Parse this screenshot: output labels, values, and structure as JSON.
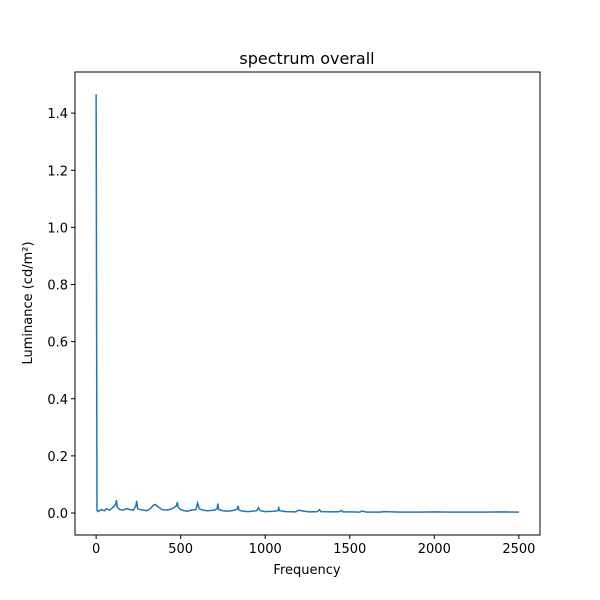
{
  "chart_data": {
    "type": "line",
    "title": "spectrum overall",
    "xlabel": "Frequency",
    "ylabel": "Luminance (cd/m²)",
    "x": [
      0,
      5,
      10,
      30,
      50,
      60,
      80,
      100,
      115,
      120,
      125,
      140,
      160,
      180,
      200,
      220,
      235,
      240,
      245,
      260,
      280,
      300,
      320,
      340,
      350,
      360,
      370,
      390,
      420,
      450,
      475,
      480,
      485,
      500,
      520,
      540,
      560,
      590,
      600,
      610,
      630,
      660,
      700,
      715,
      720,
      725,
      750,
      780,
      820,
      835,
      840,
      845,
      870,
      900,
      950,
      960,
      970,
      1000,
      1050,
      1075,
      1080,
      1085,
      1120,
      1180,
      1200,
      1220,
      1260,
      1310,
      1320,
      1330,
      1400,
      1440,
      1450,
      1460,
      1500,
      1560,
      1570,
      1600,
      1680,
      1700,
      1800,
      1900,
      2000,
      2100,
      2200,
      2300,
      2400,
      2500
    ],
    "series": [
      {
        "color": "#1f77b4",
        "values": [
          1.466,
          0.01,
          0.005,
          0.012,
          0.008,
          0.015,
          0.01,
          0.02,
          0.03,
          0.045,
          0.02,
          0.012,
          0.01,
          0.015,
          0.012,
          0.01,
          0.025,
          0.043,
          0.015,
          0.012,
          0.01,
          0.008,
          0.015,
          0.028,
          0.03,
          0.025,
          0.02,
          0.012,
          0.01,
          0.015,
          0.025,
          0.038,
          0.02,
          0.012,
          0.008,
          0.006,
          0.01,
          0.012,
          0.035,
          0.015,
          0.01,
          0.008,
          0.01,
          0.015,
          0.033,
          0.012,
          0.008,
          0.006,
          0.01,
          0.015,
          0.025,
          0.01,
          0.006,
          0.005,
          0.008,
          0.018,
          0.008,
          0.005,
          0.006,
          0.008,
          0.018,
          0.008,
          0.005,
          0.004,
          0.01,
          0.007,
          0.004,
          0.005,
          0.012,
          0.005,
          0.004,
          0.005,
          0.009,
          0.004,
          0.004,
          0.003,
          0.007,
          0.003,
          0.003,
          0.005,
          0.003,
          0.003,
          0.004,
          0.003,
          0.003,
          0.003,
          0.004,
          0.003
        ]
      }
    ],
    "xlim": [
      -125,
      2625
    ],
    "ylim": [
      -0.077,
      1.544
    ],
    "xticks": [
      0,
      500,
      1000,
      1500,
      2000,
      2500
    ],
    "yticks": [
      {
        "value": 0,
        "label": "0.0"
      },
      {
        "value": 0.2,
        "label": "0.2"
      },
      {
        "value": 0.4,
        "label": "0.4"
      },
      {
        "value": 0.6,
        "label": "0.6"
      },
      {
        "value": 0.8,
        "label": "0.8"
      },
      {
        "value": 1.0,
        "label": "1.0"
      },
      {
        "value": 1.2,
        "label": "1.2"
      },
      {
        "value": 1.4,
        "label": "1.4"
      }
    ]
  }
}
